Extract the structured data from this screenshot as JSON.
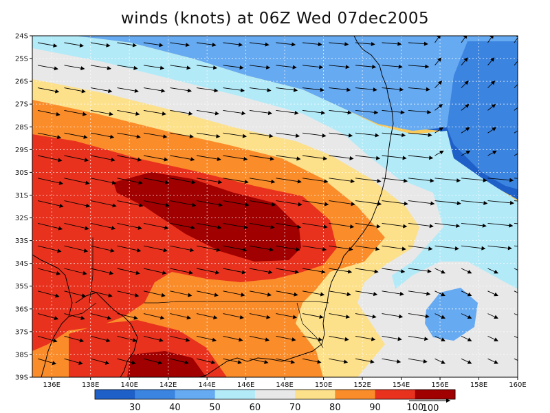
{
  "title": "winds (knots) at 06Z Wed 07dec2005",
  "map": {
    "lon_range": [
      135,
      160
    ],
    "lat_range": [
      -39,
      -24
    ],
    "lon_ticks": [
      "136E",
      "138E",
      "140E",
      "142E",
      "144E",
      "146E",
      "148E",
      "150E",
      "152E",
      "154E",
      "156E",
      "158E",
      "160E"
    ],
    "lat_ticks": [
      "24S",
      "25S",
      "26S",
      "27S",
      "28S",
      "29S",
      "30S",
      "31S",
      "32S",
      "33S",
      "34S",
      "35S",
      "36S",
      "37S",
      "38S",
      "39S"
    ],
    "gridlines": true,
    "background_color": "#f8c95b"
  },
  "colorbar": {
    "colors": [
      "#1f5fc8",
      "#3b84e0",
      "#66aaf2",
      "#b3eaf8",
      "#e8e8e8",
      "#fde08a",
      "#fa8c2a",
      "#e8321e",
      "#a00000"
    ],
    "labels": [
      "30",
      "40",
      "50",
      "60",
      "70",
      "80",
      "90",
      "100"
    ],
    "vector_label": "100"
  },
  "wind_bands": [
    {
      "color": "#1f5fc8",
      "level": "<30"
    },
    {
      "color": "#3b84e0",
      "level": "30-40"
    },
    {
      "color": "#66aaf2",
      "level": "40-50"
    },
    {
      "color": "#b3eaf8",
      "level": "50-60"
    },
    {
      "color": "#e8e8e8",
      "level": "60-70"
    },
    {
      "color": "#fde08a",
      "level": "70-80"
    },
    {
      "color": "#fa8c2a",
      "level": "80-90"
    },
    {
      "color": "#e8321e",
      "level": "90-100"
    },
    {
      "color": "#a00000",
      "level": ">100"
    }
  ]
}
